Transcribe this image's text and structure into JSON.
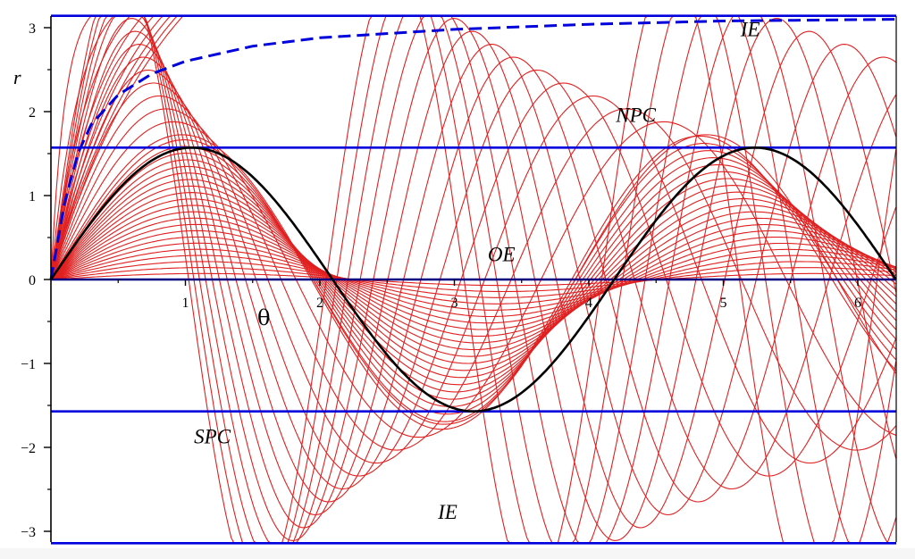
{
  "chart_data": {
    "type": "line",
    "title": "",
    "xlabel": "θ",
    "ylabel": "r",
    "xlim": [
      0,
      6.2832
    ],
    "ylim": [
      -3.1416,
      3.1416
    ],
    "grid": false,
    "legend": null,
    "x_ticks": [
      1,
      2,
      3,
      4,
      5,
      6
    ],
    "x_tick_labels": [
      "1",
      "2",
      "3",
      "4",
      "5",
      "6"
    ],
    "y_ticks": [
      -3,
      -2,
      -1,
      0,
      1,
      2,
      3
    ],
    "y_tick_labels": [
      "−3",
      "−2",
      "−1",
      "0",
      "1",
      "2",
      "3"
    ],
    "horizontal_lines": [
      {
        "name": "upper-boundary",
        "y": 3.1416,
        "color": "#0000dd"
      },
      {
        "name": "npc-line",
        "y": 1.5708,
        "color": "#0000dd"
      },
      {
        "name": "oe-line",
        "y": 0,
        "color": "#000080"
      },
      {
        "name": "spc-line",
        "y": -1.5708,
        "color": "#0000dd"
      },
      {
        "name": "lower-boundary",
        "y": -3.1416,
        "color": "#0000dd"
      }
    ],
    "region_labels": [
      {
        "text": "IE",
        "x": 5.2,
        "y": 2.9
      },
      {
        "text": "NPC",
        "x": 4.35,
        "y": 1.88
      },
      {
        "text": "OE",
        "x": 3.35,
        "y": 0.22
      },
      {
        "text": "SPC",
        "x": 1.2,
        "y": -1.95
      },
      {
        "text": "IE",
        "x": 2.95,
        "y": -2.85
      }
    ],
    "series": [
      {
        "name": "separatrix-dashed",
        "style": "dashed",
        "color": "#0000dd",
        "description": "rises from origin toward r=π asymptotically",
        "points": [
          [
            0,
            0
          ],
          [
            0.1,
            0.9
          ],
          [
            0.2,
            1.5
          ],
          [
            0.3,
            1.85
          ],
          [
            0.5,
            2.2
          ],
          [
            0.75,
            2.45
          ],
          [
            1.0,
            2.6
          ],
          [
            1.5,
            2.78
          ],
          [
            2.0,
            2.88
          ],
          [
            3.0,
            2.98
          ],
          [
            4.0,
            3.04
          ],
          [
            5.0,
            3.08
          ],
          [
            6.28,
            3.1
          ]
        ]
      },
      {
        "name": "reference-curve",
        "style": "solid",
        "color": "#000000",
        "description": "r = (π/2)·sin(1.5θ)",
        "amplitude": 1.5708,
        "frequency": 1.5
      },
      {
        "name": "trajectory-family",
        "style": "solid",
        "color": "#e02020",
        "count": 40,
        "description": "family of red trajectories fanning from origin, converging near θ≈1.83, 3.67, 5.5"
      }
    ],
    "colors": {
      "boundary": "#0000dd",
      "axis": "#000000",
      "family": "#e02020",
      "reference": "#000000",
      "background": "#ffffff"
    }
  }
}
